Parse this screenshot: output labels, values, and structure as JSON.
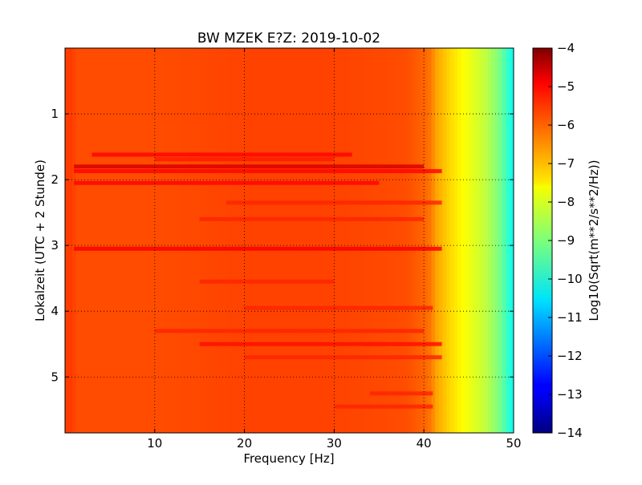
{
  "chart_data": {
    "type": "heatmap",
    "title": "BW MZEK E?Z: 2019-10-02",
    "xlabel": "Frequency [Hz]",
    "ylabel": "Lokalzeit (UTC + 2 Stunde)",
    "xlim": [
      0,
      50
    ],
    "ylim": [
      5.85,
      0
    ],
    "xticks": [
      10,
      20,
      30,
      40,
      50
    ],
    "yticks": [
      1,
      2,
      3,
      4,
      5
    ],
    "grid": true,
    "colorbar": {
      "label": "Log10(Sqrt(m**2/s**2/Hz))",
      "range": [
        -14,
        -4
      ],
      "ticks": [
        -4,
        -5,
        -6,
        -7,
        -8,
        -9,
        -10,
        -11,
        -12,
        -13,
        -14
      ],
      "colormap": "jet"
    },
    "background_level": -6.1,
    "frequency_profile": [
      {
        "f": 0.0,
        "v": -5.9
      },
      {
        "f": 0.5,
        "v": -5.8
      },
      {
        "f": 1.5,
        "v": -6.0
      },
      {
        "f": 10.0,
        "v": -6.0
      },
      {
        "f": 20.0,
        "v": -5.9
      },
      {
        "f": 30.0,
        "v": -5.9
      },
      {
        "f": 38.0,
        "v": -6.0
      },
      {
        "f": 40.5,
        "v": -6.3
      },
      {
        "f": 41.5,
        "v": -6.9
      },
      {
        "f": 43.0,
        "v": -7.4
      },
      {
        "f": 45.0,
        "v": -7.9
      },
      {
        "f": 47.0,
        "v": -8.4
      },
      {
        "f": 48.5,
        "v": -9.1
      },
      {
        "f": 49.3,
        "v": -9.7
      },
      {
        "f": 50.0,
        "v": -10.2
      }
    ],
    "bands": [
      {
        "t": 1.62,
        "f_start": 3,
        "f_end": 32,
        "v": -5.3
      },
      {
        "t": 1.69,
        "f_start": 10,
        "f_end": 30,
        "v": -5.5
      },
      {
        "t": 1.8,
        "f_start": 1,
        "f_end": 40,
        "v": -4.9
      },
      {
        "t": 1.87,
        "f_start": 1,
        "f_end": 42,
        "v": -5.3
      },
      {
        "t": 2.05,
        "f_start": 1,
        "f_end": 35,
        "v": -5.3
      },
      {
        "t": 2.35,
        "f_start": 18,
        "f_end": 42,
        "v": -5.6
      },
      {
        "t": 2.6,
        "f_start": 15,
        "f_end": 40,
        "v": -5.6
      },
      {
        "t": 3.05,
        "f_start": 1,
        "f_end": 42,
        "v": -5.2
      },
      {
        "t": 3.55,
        "f_start": 15,
        "f_end": 30,
        "v": -5.6
      },
      {
        "t": 3.95,
        "f_start": 20,
        "f_end": 41,
        "v": -5.6
      },
      {
        "t": 4.3,
        "f_start": 10,
        "f_end": 40,
        "v": -5.6
      },
      {
        "t": 4.5,
        "f_start": 15,
        "f_end": 42,
        "v": -5.4
      },
      {
        "t": 4.7,
        "f_start": 20,
        "f_end": 42,
        "v": -5.6
      },
      {
        "t": 5.25,
        "f_start": 34,
        "f_end": 41,
        "v": -5.6
      },
      {
        "t": 5.45,
        "f_start": 30,
        "f_end": 41,
        "v": -5.6
      }
    ]
  }
}
